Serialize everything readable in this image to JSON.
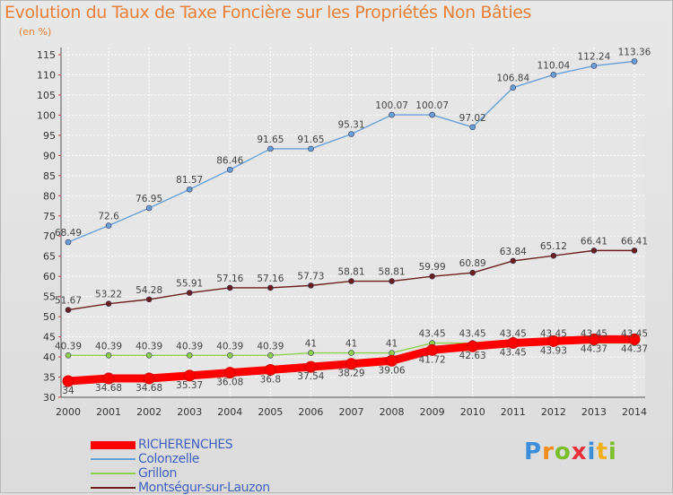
{
  "title": "Evolution du Taux de Taxe Foncière sur les Propriétés Non Bâties",
  "subtitle": "(en %)",
  "logo": [
    "P",
    "r",
    "o",
    "x",
    "i",
    "t",
    "i"
  ],
  "chart_data": {
    "type": "line",
    "x": [
      "2000",
      "2001",
      "2002",
      "2003",
      "2004",
      "2005",
      "2006",
      "2007",
      "2008",
      "2009",
      "2010",
      "2011",
      "2012",
      "2013",
      "2014"
    ],
    "ylim": [
      30,
      115
    ],
    "yticks": [
      30,
      35,
      40,
      45,
      50,
      55,
      60,
      65,
      70,
      75,
      80,
      85,
      90,
      95,
      100,
      105,
      110,
      115
    ],
    "legend_position": "bottom-left",
    "series": [
      {
        "name": "RICHERENCHES",
        "color": "#ff0000",
        "values": [
          34,
          34.68,
          34.68,
          35.37,
          36.08,
          36.8,
          37.54,
          38.29,
          39.06,
          41.72,
          42.63,
          43.45,
          43.93,
          44.37,
          44.37
        ],
        "labels": [
          "34",
          "34.68",
          "34.68",
          "35.37",
          "36.08",
          "36.8",
          "37.54",
          "38.29",
          "39.06",
          "41.72",
          "42.63",
          "43.45",
          "43.93",
          "44.37",
          "44.37"
        ]
      },
      {
        "name": "Colonzelle",
        "color": "#6aa0d8",
        "values": [
          68.49,
          72.6,
          76.95,
          81.57,
          86.46,
          91.65,
          91.65,
          95.31,
          100.07,
          100.07,
          97.02,
          106.84,
          110.04,
          112.24,
          113.36
        ],
        "labels": [
          "68.49",
          "72.6",
          "76.95",
          "81.57",
          "86.46",
          "91.65",
          "91.65",
          "95.31",
          "100.07",
          "100.07",
          "97.02",
          "106.84",
          "110.04",
          "112.24",
          "113.36"
        ]
      },
      {
        "name": "Grillon",
        "color": "#8fd14f",
        "values": [
          40.39,
          40.39,
          40.39,
          40.39,
          40.39,
          40.39,
          41,
          41,
          41,
          43.45,
          43.45,
          43.45,
          43.45,
          43.45,
          43.45
        ],
        "labels": [
          "40.39",
          "40.39",
          "40.39",
          "40.39",
          "40.39",
          "40.39",
          "41",
          "41",
          "41",
          "43.45",
          "43.45",
          "43.45",
          "43.45",
          "43.45",
          "43.45"
        ]
      },
      {
        "name": "Montségur-sur-Lauzon",
        "color": "#6b1e1e",
        "values": [
          51.67,
          53.22,
          54.28,
          55.91,
          57.16,
          57.16,
          57.73,
          58.81,
          58.81,
          59.99,
          60.89,
          63.84,
          65.12,
          66.41,
          66.41
        ],
        "labels": [
          "51.67",
          "53.22",
          "54.28",
          "55.91",
          "57.16",
          "57.16",
          "57.73",
          "58.81",
          "58.81",
          "59.99",
          "60.89",
          "63.84",
          "65.12",
          "66.41",
          "66.41"
        ]
      }
    ]
  }
}
